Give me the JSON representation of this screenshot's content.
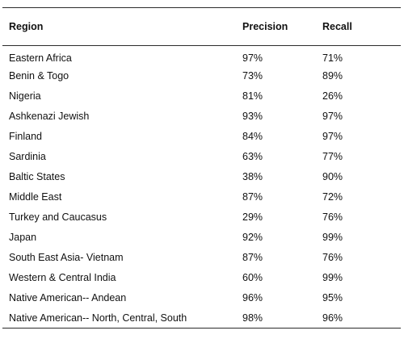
{
  "table": {
    "headers": {
      "region": "Region",
      "precision": "Precision",
      "recall": "Recall"
    },
    "rows": [
      {
        "region": "Eastern Africa",
        "precision": "97%",
        "recall": "71%"
      },
      {
        "region": "Benin & Togo",
        "precision": "73%",
        "recall": "89%"
      },
      {
        "region": "Nigeria",
        "precision": "81%",
        "recall": "26%"
      },
      {
        "region": "Ashkenazi Jewish",
        "precision": "93%",
        "recall": "97%"
      },
      {
        "region": "Finland",
        "precision": "84%",
        "recall": "97%"
      },
      {
        "region": "Sardinia",
        "precision": "63%",
        "recall": "77%"
      },
      {
        "region": "Baltic States",
        "precision": "38%",
        "recall": "90%"
      },
      {
        "region": "Middle East",
        "precision": "87%",
        "recall": "72%"
      },
      {
        "region": "Turkey and Caucasus",
        "precision": "29%",
        "recall": "76%"
      },
      {
        "region": "Japan",
        "precision": "92%",
        "recall": "99%"
      },
      {
        "region": "South East Asia- Vietnam",
        "precision": "87%",
        "recall": "76%"
      },
      {
        "region": "Western & Central India",
        "precision": "60%",
        "recall": "99%"
      },
      {
        "region": "Native American-- Andean",
        "precision": "96%",
        "recall": "95%"
      },
      {
        "region": "Native American-- North, Central, South",
        "precision": "98%",
        "recall": "96%"
      }
    ]
  }
}
